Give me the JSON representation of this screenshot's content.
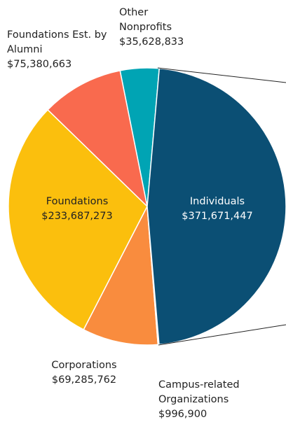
{
  "chart_data": {
    "type": "pie",
    "categories": [
      "Individuals",
      "Campus-related Organizations",
      "Corporations",
      "Foundations",
      "Foundations Est. by Alumni",
      "Other Nonprofits"
    ],
    "values": [
      371671447,
      996900,
      69285762,
      233687273,
      75380663,
      35628833
    ],
    "value_labels": [
      "$371,671,447",
      "$996,900",
      "$69,285,762",
      "$233,687,273",
      "$75,380,663",
      "$35,628,833"
    ],
    "colors": [
      "#0b4f74",
      "#6d6e71",
      "#f98c3e",
      "#fbbf0d",
      "#f96a4e",
      "#00a4b4"
    ]
  }
}
